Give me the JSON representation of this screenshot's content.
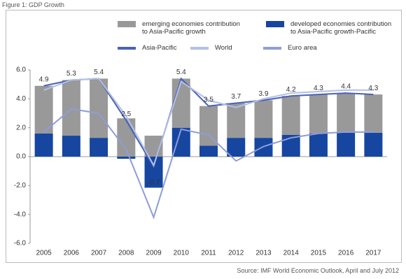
{
  "chart_data": {
    "type": "bar",
    "title": "Figure 1: GDP Growth",
    "source": "Source: IMF World Economic Outlook, April and July 2012",
    "categories": [
      "2005",
      "2006",
      "2007",
      "2008",
      "2009",
      "2010",
      "2011",
      "2012",
      "2013",
      "2014",
      "2015",
      "2016",
      "2017"
    ],
    "series": [
      {
        "name": "emerging economies contribution to Asia-Pacific growth",
        "color": "#999999",
        "kind": "bar",
        "values": [
          3.3,
          3.85,
          4.1,
          2.65,
          1.45,
          3.4,
          2.75,
          2.4,
          2.6,
          2.7,
          2.7,
          2.75,
          2.65
        ]
      },
      {
        "name": "developed economies contribution to Asia-Pacific growth-Pacific",
        "color": "#1646a0",
        "kind": "bar",
        "values": [
          1.6,
          1.45,
          1.3,
          -0.15,
          -2.15,
          2.0,
          0.75,
          1.3,
          1.3,
          1.5,
          1.6,
          1.65,
          1.65
        ]
      },
      {
        "name": "Asia-Pacific",
        "color": "#4a62b8",
        "kind": "line",
        "values": [
          4.9,
          5.3,
          5.4,
          2.5,
          -0.7,
          5.4,
          3.5,
          3.7,
          3.9,
          4.2,
          4.3,
          4.4,
          4.3
        ]
      },
      {
        "name": "World",
        "color": "#b3c0e6",
        "kind": "line",
        "values": [
          4.6,
          5.3,
          5.4,
          2.8,
          -0.6,
          5.2,
          3.9,
          3.4,
          4.0,
          4.4,
          4.5,
          4.6,
          4.6
        ]
      },
      {
        "name": "Euro area",
        "color": "#8f9dd8",
        "kind": "line",
        "values": [
          1.7,
          3.3,
          3.0,
          0.5,
          -4.2,
          1.9,
          1.5,
          -0.3,
          0.7,
          1.3,
          1.6,
          1.7,
          1.7
        ]
      }
    ],
    "labeled_series": 2,
    "ylim": [
      -6,
      6
    ],
    "yticks": [
      {
        "value": -6,
        "label": "-6.0"
      },
      {
        "value": -4,
        "label": "-4.0"
      },
      {
        "value": -2,
        "label": "-2.0"
      },
      {
        "value": 0,
        "label": "0.0"
      },
      {
        "value": 2,
        "label": "2.0"
      },
      {
        "value": 4,
        "label": "4.0"
      },
      {
        "value": 6,
        "label": "6.0"
      }
    ]
  }
}
